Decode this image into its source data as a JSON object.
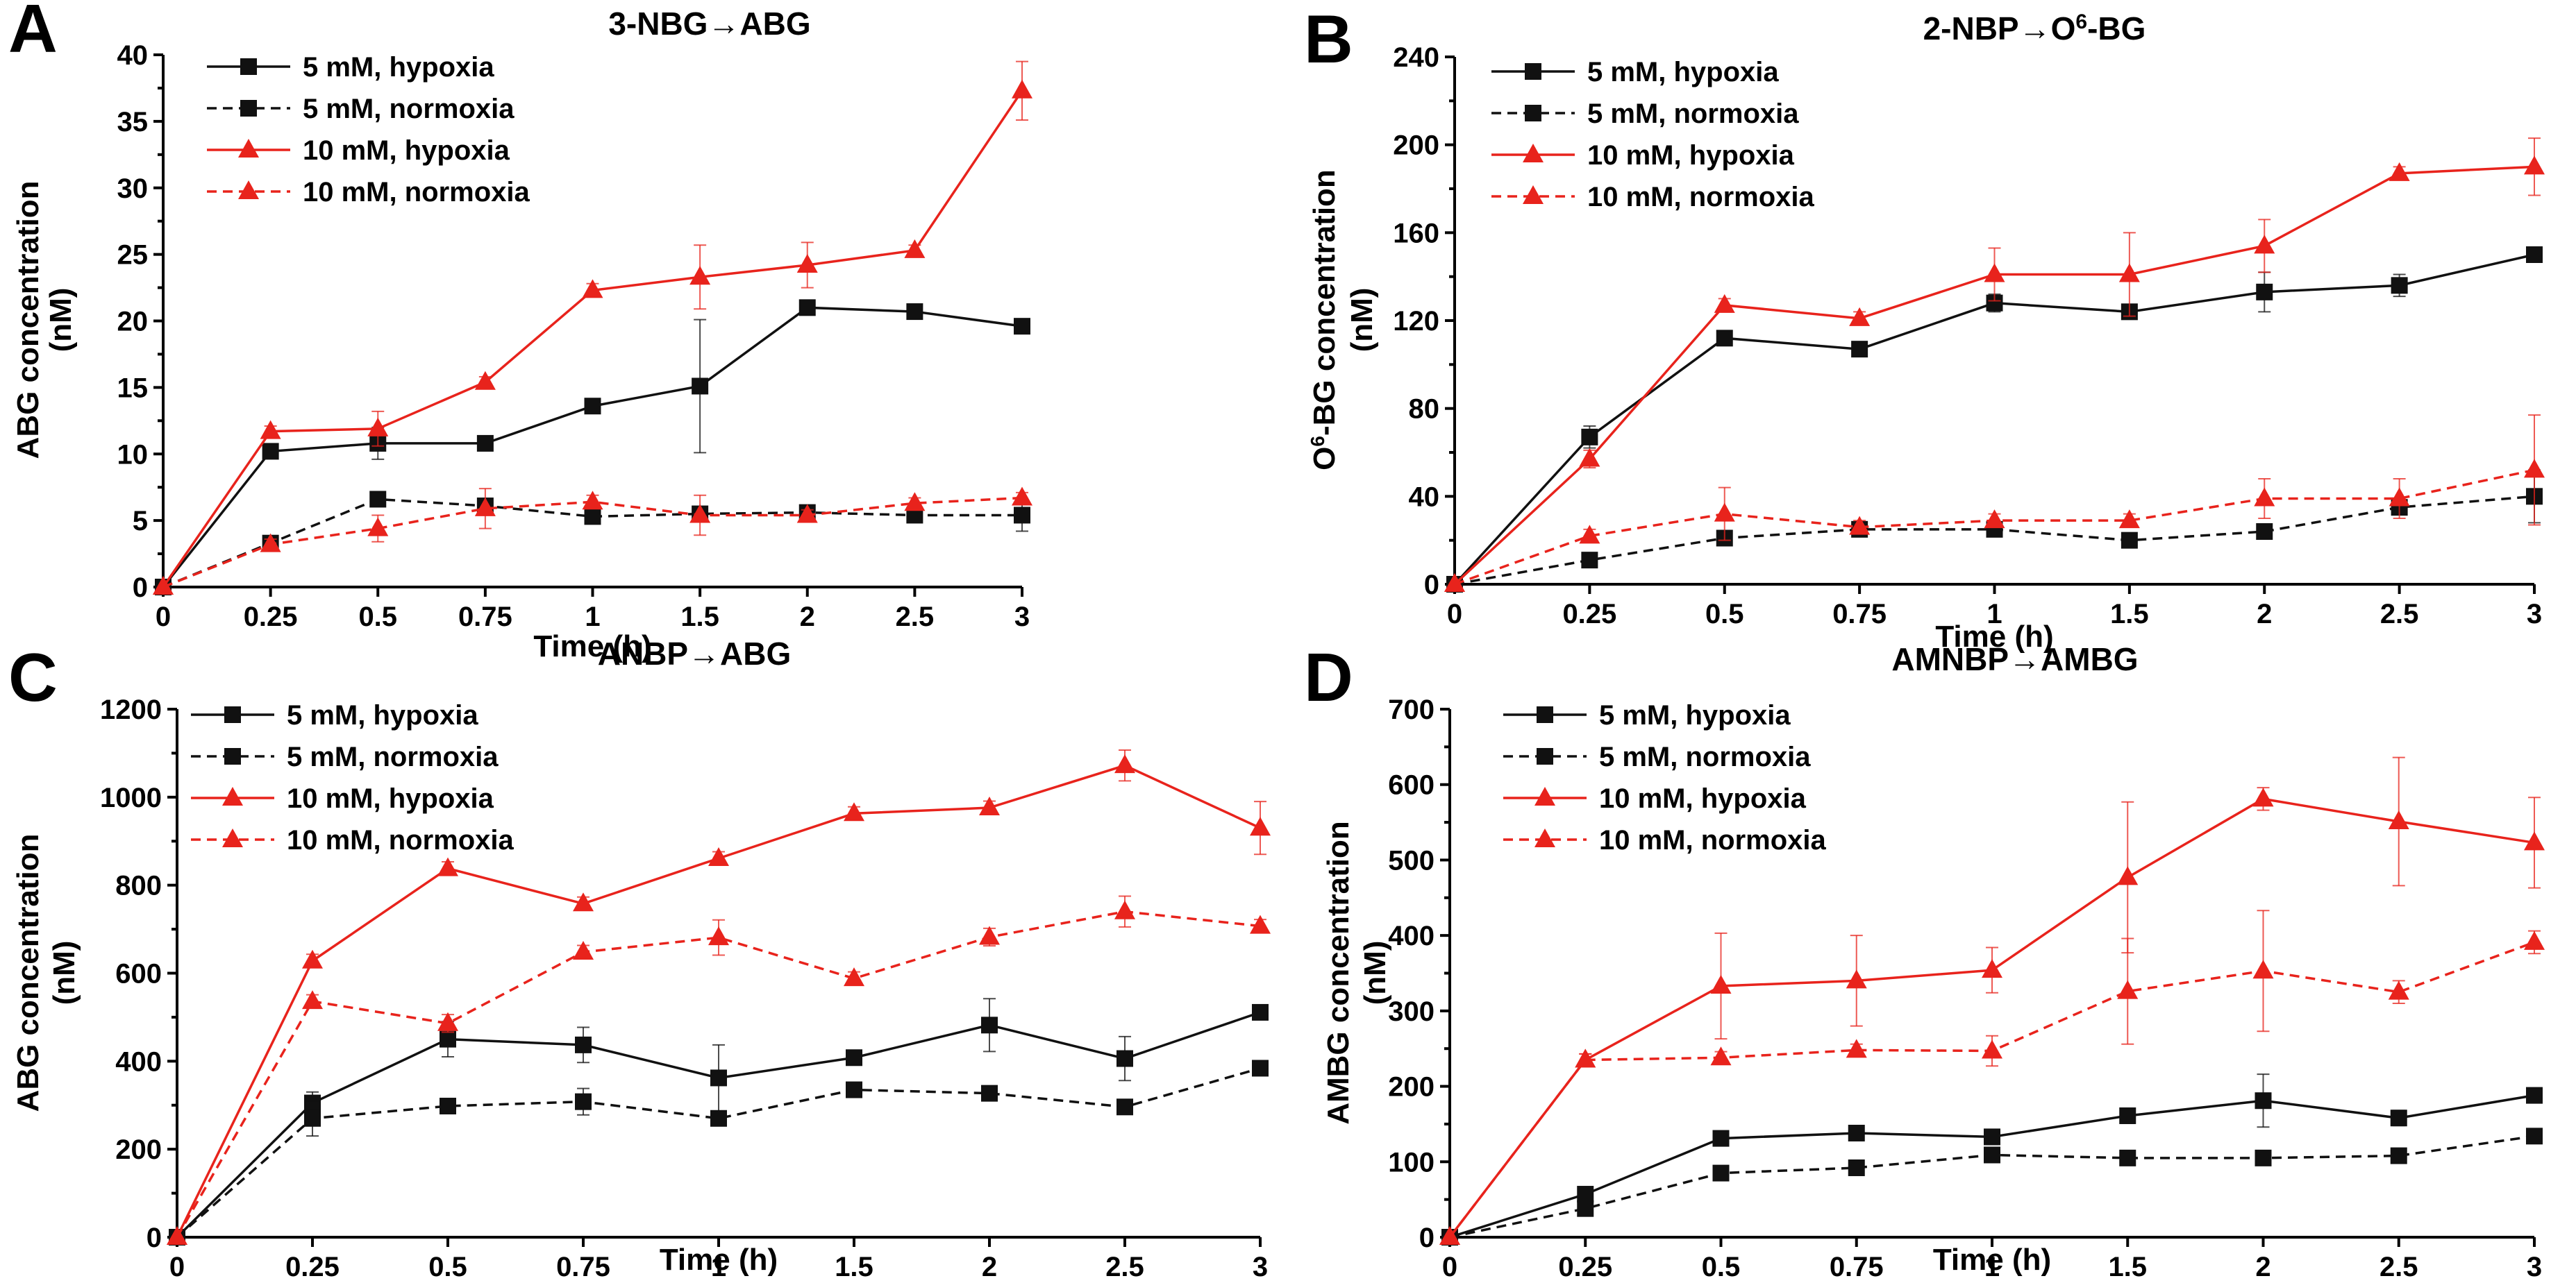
{
  "colors": {
    "black": "#111111",
    "red": "#e8231c"
  },
  "chart_data": [
    {
      "panel": "A",
      "type": "line",
      "title": "3-NBG→ABG",
      "ylabel_lines": [
        "ABG concentration",
        "(nM)"
      ],
      "xlabel": "Time (h)",
      "categories": [
        "0",
        "0.25",
        "0.5",
        "0.75",
        "1",
        "1.5",
        "2",
        "2.5",
        "3"
      ],
      "ylim": [
        0,
        40
      ],
      "yticks": [
        "0",
        "5",
        "10",
        "15",
        "20",
        "25",
        "30",
        "35",
        "40"
      ],
      "legend_position": "top-left",
      "series": [
        {
          "name": "5 mM, hypoxia",
          "color": "black",
          "dashed": false,
          "marker": "square",
          "values": [
            0,
            10.2,
            10.8,
            10.8,
            13.6,
            15.1,
            21.0,
            20.7,
            19.6
          ],
          "errors": [
            0,
            0.5,
            1.2,
            0.4,
            0.5,
            5.0,
            0.3,
            0.4,
            0.3
          ]
        },
        {
          "name": "5 mM, normoxia",
          "color": "black",
          "dashed": true,
          "marker": "square",
          "values": [
            0,
            3.3,
            6.6,
            6.1,
            5.3,
            5.5,
            5.6,
            5.4,
            5.4
          ],
          "errors": [
            0,
            0.4,
            0.5,
            0.4,
            0.4,
            0.4,
            0.3,
            0.3,
            1.2
          ]
        },
        {
          "name": "10 mM, hypoxia",
          "color": "red",
          "dashed": false,
          "marker": "triangle",
          "values": [
            0,
            11.7,
            11.9,
            15.4,
            22.3,
            23.3,
            24.2,
            25.3,
            37.3
          ],
          "errors": [
            0,
            0.4,
            1.3,
            0.4,
            0.5,
            2.4,
            1.7,
            0.4,
            2.2
          ]
        },
        {
          "name": "10 mM, normoxia",
          "color": "red",
          "dashed": true,
          "marker": "triangle",
          "values": [
            0,
            3.2,
            4.4,
            5.9,
            6.4,
            5.4,
            5.4,
            6.3,
            6.7
          ],
          "errors": [
            0,
            0.4,
            1.0,
            1.5,
            0.5,
            1.5,
            0.4,
            0.4,
            0.4
          ]
        }
      ]
    },
    {
      "panel": "B",
      "type": "line",
      "title": "2-NBP→O",
      "title_sup": "6",
      "title_after": "-BG",
      "ylabel_lines": [
        "O",
        "6",
        "-BG concentration",
        "(nM)"
      ],
      "xlabel": "Time (h)",
      "categories": [
        "0",
        "0.25",
        "0.5",
        "0.75",
        "1",
        "1.5",
        "2",
        "2.5",
        "3"
      ],
      "ylim": [
        0,
        240
      ],
      "yticks": [
        "0",
        "40",
        "80",
        "120",
        "160",
        "200",
        "240"
      ],
      "legend_position": "top-left",
      "series": [
        {
          "name": "5 mM, hypoxia",
          "color": "black",
          "dashed": false,
          "marker": "square",
          "values": [
            0,
            67,
            112,
            107,
            128,
            124,
            133,
            136,
            150
          ],
          "errors": [
            0,
            5,
            3,
            3,
            4,
            3,
            9,
            5,
            3
          ]
        },
        {
          "name": "5 mM, normoxia",
          "color": "black",
          "dashed": true,
          "marker": "square",
          "values": [
            0,
            11,
            21,
            25,
            25,
            20,
            24,
            35,
            40
          ],
          "errors": [
            0,
            2,
            3,
            3,
            3,
            3,
            3,
            3,
            12
          ]
        },
        {
          "name": "10 mM, hypoxia",
          "color": "red",
          "dashed": false,
          "marker": "triangle",
          "values": [
            0,
            57,
            127,
            121,
            141,
            141,
            154,
            187,
            190
          ],
          "errors": [
            0,
            4,
            3,
            3,
            12,
            19,
            12,
            3,
            13
          ]
        },
        {
          "name": "10 mM, normoxia",
          "color": "red",
          "dashed": true,
          "marker": "triangle",
          "values": [
            0,
            22,
            32,
            26,
            29,
            29,
            39,
            39,
            52
          ],
          "errors": [
            0,
            3,
            12,
            3,
            3,
            3,
            9,
            9,
            25
          ]
        }
      ]
    },
    {
      "panel": "C",
      "type": "line",
      "title": "ANBP→ABG",
      "ylabel_lines": [
        "ABG concentration",
        "(nM)"
      ],
      "xlabel": "Time (h)",
      "categories": [
        "0",
        "0.25",
        "0.5",
        "0.75",
        "1",
        "1.5",
        "2",
        "2.5",
        "3"
      ],
      "ylim": [
        0,
        1200
      ],
      "yticks": [
        "0",
        "200",
        "400",
        "600",
        "800",
        "1000",
        "1200"
      ],
      "legend_position": "top-left",
      "series": [
        {
          "name": "5 mM, hypoxia",
          "color": "black",
          "dashed": false,
          "marker": "square",
          "values": [
            0,
            305,
            450,
            437,
            362,
            408,
            482,
            406,
            511
          ],
          "errors": [
            0,
            25,
            40,
            40,
            75,
            15,
            60,
            50,
            15
          ]
        },
        {
          "name": "5 mM, normoxia",
          "color": "black",
          "dashed": true,
          "marker": "square",
          "values": [
            0,
            270,
            298,
            308,
            270,
            335,
            327,
            296,
            384
          ],
          "errors": [
            0,
            40,
            15,
            30,
            15,
            15,
            15,
            15,
            15
          ]
        },
        {
          "name": "10 mM, hypoxia",
          "color": "red",
          "dashed": false,
          "marker": "triangle",
          "values": [
            0,
            628,
            838,
            758,
            861,
            963,
            976,
            1072,
            930
          ],
          "errors": [
            0,
            15,
            15,
            15,
            15,
            15,
            15,
            35,
            60
          ]
        },
        {
          "name": "10 mM, normoxia",
          "color": "red",
          "dashed": true,
          "marker": "triangle",
          "values": [
            0,
            536,
            486,
            648,
            681,
            588,
            682,
            740,
            707
          ],
          "errors": [
            0,
            15,
            20,
            15,
            40,
            15,
            20,
            35,
            15
          ]
        }
      ]
    },
    {
      "panel": "D",
      "type": "line",
      "title": "AMNBP→AMBG",
      "ylabel_lines": [
        "AMBG concentration",
        "(nM)"
      ],
      "xlabel": "Time (h)",
      "categories": [
        "0",
        "0.25",
        "0.5",
        "0.75",
        "1",
        "1.5",
        "2",
        "2.5",
        "3"
      ],
      "ylim": [
        0,
        700
      ],
      "yticks": [
        "0",
        "100",
        "200",
        "300",
        "400",
        "500",
        "600",
        "700"
      ],
      "legend_position": "top-left",
      "series": [
        {
          "name": "5 mM, hypoxia",
          "color": "black",
          "dashed": false,
          "marker": "square",
          "values": [
            0,
            57,
            131,
            138,
            133,
            161,
            181,
            158,
            188
          ],
          "errors": [
            0,
            8,
            8,
            8,
            10,
            10,
            35,
            10,
            8
          ]
        },
        {
          "name": "5 mM, normoxia",
          "color": "black",
          "dashed": true,
          "marker": "square",
          "values": [
            0,
            38,
            85,
            92,
            109,
            105,
            105,
            108,
            134
          ],
          "errors": [
            0,
            5,
            5,
            5,
            5,
            5,
            5,
            5,
            5
          ]
        },
        {
          "name": "10 mM, hypoxia",
          "color": "red",
          "dashed": false,
          "marker": "triangle",
          "values": [
            0,
            235,
            333,
            340,
            354,
            477,
            581,
            551,
            523
          ],
          "errors": [
            0,
            8,
            70,
            60,
            30,
            100,
            15,
            85,
            60
          ]
        },
        {
          "name": "10 mM, normoxia",
          "color": "red",
          "dashed": true,
          "marker": "triangle",
          "values": [
            0,
            235,
            238,
            248,
            247,
            326,
            353,
            325,
            391
          ],
          "errors": [
            0,
            8,
            8,
            8,
            20,
            70,
            80,
            15,
            15
          ]
        }
      ]
    }
  ]
}
